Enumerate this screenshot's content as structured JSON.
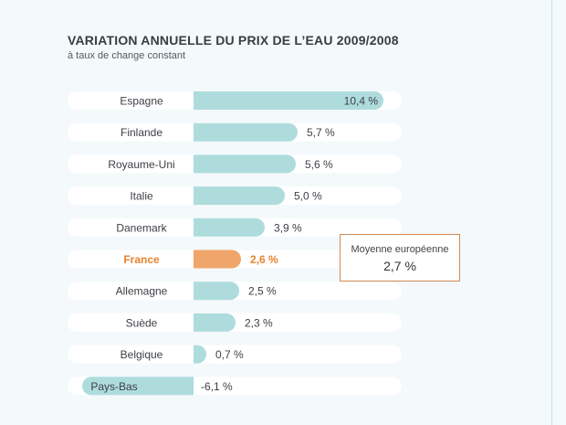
{
  "title": "VARIATION ANNUELLE DU PRIX DE L’EAU 2009/2008",
  "subtitle": "à taux de change constant",
  "average": {
    "label": "Moyenne européenne",
    "value": "2,7 %"
  },
  "colors": {
    "bar": "#aedcdd",
    "highlight": "#f0a66b",
    "highlight_text": "#e8822c",
    "row_bg": "#ffffff",
    "label": "#3d4045"
  },
  "chart_data": {
    "type": "bar",
    "orientation": "horizontal",
    "title": "VARIATION ANNUELLE DU PRIX DE L’EAU 2009/2008",
    "subtitle": "à taux de change constant",
    "categories": [
      "Espagne",
      "Finlande",
      "Royaume-Uni",
      "Italie",
      "Danemark",
      "France",
      "Allemagne",
      "Suède",
      "Belgique",
      "Pays-Bas"
    ],
    "values": [
      10.4,
      5.7,
      5.6,
      5.0,
      3.9,
      2.6,
      2.5,
      2.3,
      0.7,
      -6.1
    ],
    "value_labels": [
      "10,4 %",
      "5,7 %",
      "5,6 %",
      "5,0 %",
      "3,9 %",
      "2,6 %",
      "2,5 %",
      "2,3 %",
      "0,7 %",
      "-6,1 %"
    ],
    "highlight": "France",
    "xlim": [
      -6.1,
      10.4
    ]
  }
}
